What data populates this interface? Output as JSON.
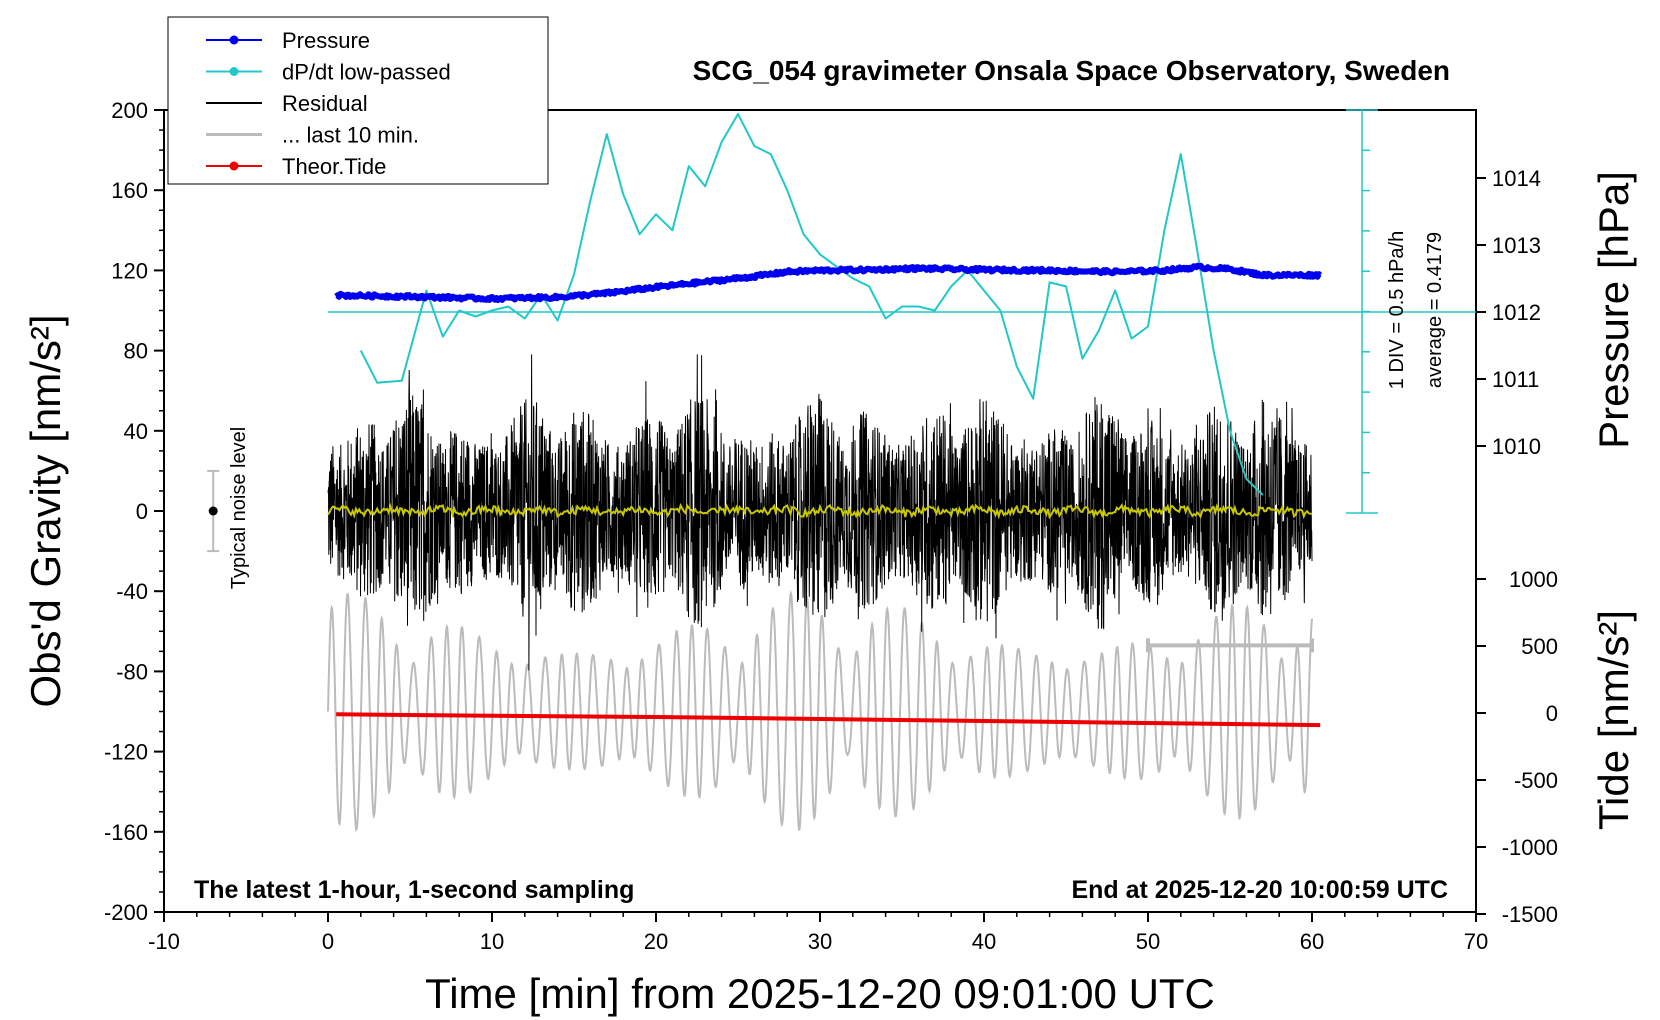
{
  "chart_data": {
    "type": "line",
    "title": "SCG_054 gravimeter Onsala Space Observatory, Sweden",
    "xlabel": "Time [min] from 2025-12-20 09:01:00 UTC",
    "xlim": [
      -10,
      70
    ],
    "x_ticks": [
      -10,
      0,
      10,
      20,
      30,
      40,
      50,
      60,
      70
    ],
    "y_left": {
      "label": "Obs'd Gravity [nm/s²]",
      "lim": [
        -200,
        200
      ],
      "ticks": [
        200,
        160,
        120,
        80,
        40,
        0,
        -40,
        -80,
        -120,
        -160,
        -200
      ]
    },
    "y_right_pressure": {
      "label": "Pressure [hPa]",
      "ticks": [
        1014,
        1013,
        1012,
        1011,
        1010
      ]
    },
    "y_right_tide": {
      "label": "Tide [nm/s²]",
      "ticks": [
        1000,
        500,
        0,
        -500,
        -1000,
        -1500
      ]
    },
    "legend": {
      "placement": "top-left",
      "entries": [
        {
          "label": "Pressure",
          "color": "#0000ee",
          "marker": true
        },
        {
          "label": "dP/dt low-passed",
          "color": "#20c8c8",
          "marker": true
        },
        {
          "label": "Residual",
          "color": "#000000",
          "marker": false
        },
        {
          "label": "... last 10 min.",
          "color": "#bbbbbb",
          "marker": false
        },
        {
          "label": "Theor.Tide",
          "color": "#ee0000",
          "marker": true
        }
      ]
    },
    "annotations": {
      "bottom_left": "The latest 1-hour, 1-second sampling",
      "bottom_right": "End at 2025-12-20 10:00:59 UTC",
      "noise": "Typical noise level",
      "div": "1 DIV = 0.5 hPa/h",
      "average": "average = 0.4179"
    },
    "series": [
      {
        "name": "Pressure",
        "unit": "hPa",
        "x": [
          0.5,
          5,
          10,
          14,
          17,
          20,
          23,
          26,
          28,
          30,
          33,
          36,
          40,
          44,
          48,
          51,
          53,
          55,
          57,
          60.5
        ],
        "values": [
          1012.25,
          1012.23,
          1012.2,
          1012.22,
          1012.28,
          1012.37,
          1012.45,
          1012.53,
          1012.6,
          1012.62,
          1012.63,
          1012.65,
          1012.63,
          1012.62,
          1012.6,
          1012.62,
          1012.67,
          1012.64,
          1012.55,
          1012.55
        ]
      },
      {
        "name": "dP/dt low-passed",
        "unit": "hPa/h (relative, 1 DIV = 0.5)",
        "x": [
          2,
          3,
          4.5,
          6,
          7,
          8,
          9,
          10,
          11,
          12,
          13,
          14,
          15,
          16,
          17,
          18,
          19,
          20,
          21,
          22,
          23,
          24,
          25,
          26,
          27,
          28,
          29,
          30,
          31,
          32,
          33,
          34,
          35,
          36,
          37,
          38,
          39,
          40,
          41,
          42,
          43,
          44,
          45,
          46,
          47,
          48,
          49,
          50,
          51,
          52,
          53,
          54,
          55,
          56,
          57
        ],
        "values": [
          80,
          64,
          65,
          110,
          87,
          100,
          97,
          100,
          102,
          96,
          108,
          95,
          118,
          155,
          188,
          158,
          138,
          148,
          140,
          172,
          162,
          184,
          198,
          182,
          178,
          160,
          138,
          128,
          122,
          116,
          112,
          96,
          102,
          102,
          100,
          112,
          120,
          110,
          100,
          72,
          56,
          114,
          112,
          76,
          90,
          110,
          86,
          92,
          140,
          178,
          130,
          80,
          40,
          16,
          8
        ]
      },
      {
        "name": "Residual",
        "unit": "nm/s²",
        "x_range": [
          0,
          60
        ],
        "amplitude_approx": 60
      },
      {
        "name": "Residual low-passed",
        "unit": "nm/s²",
        "x_range": [
          0,
          60
        ],
        "values_approx": 0
      },
      {
        "name": "... last 10 min.",
        "unit": "nm/s²",
        "x_range": [
          50,
          60
        ],
        "level": -67
      },
      {
        "name": "Residual (grey)",
        "unit": "nm/s²",
        "x_range": [
          0,
          60
        ],
        "baseline": -100,
        "amplitude_approx": 60
      },
      {
        "name": "Theor.Tide",
        "unit": "nm/s²",
        "x": [
          0.5,
          10,
          20,
          30,
          40,
          50,
          60.5
        ],
        "values": [
          -10,
          -20,
          -30,
          -45,
          -60,
          -75,
          -90
        ]
      }
    ],
    "noise_bar": {
      "x": -7,
      "y": 0,
      "low": -20,
      "high": 20
    }
  }
}
